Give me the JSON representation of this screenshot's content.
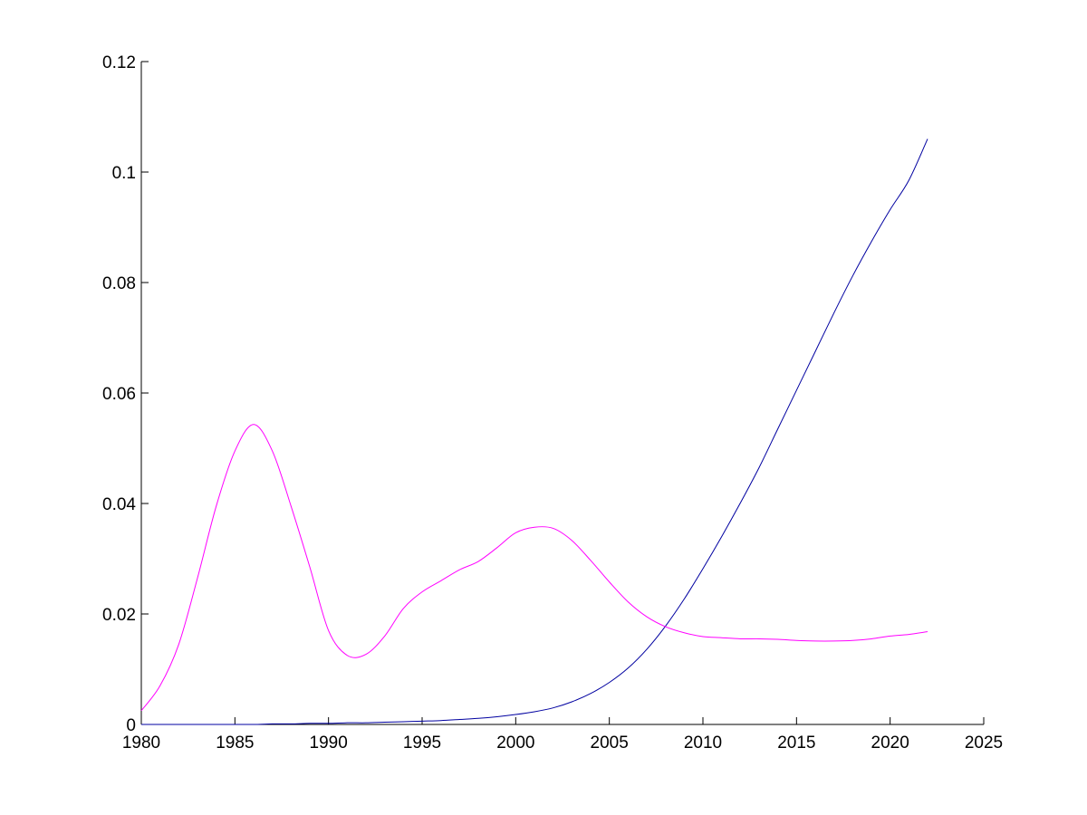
{
  "chart_data": {
    "type": "line",
    "title": "",
    "xlabel": "",
    "ylabel": "",
    "xlim": [
      1980,
      2025
    ],
    "ylim": [
      0,
      0.12
    ],
    "x_ticks": [
      1980,
      1985,
      1990,
      1995,
      2000,
      2005,
      2010,
      2015,
      2020,
      2025
    ],
    "x_tick_labels": [
      "1980",
      "1985",
      "1990",
      "1995",
      "2000",
      "2005",
      "2010",
      "2015",
      "2020",
      "2025"
    ],
    "y_ticks": [
      0,
      0.02,
      0.04,
      0.06,
      0.08,
      0.1,
      0.12
    ],
    "y_tick_labels": [
      "0",
      "0.02",
      "0.04",
      "0.06",
      "0.08",
      "0.1",
      "0.12"
    ],
    "grid": false,
    "legend": "none",
    "box": "axes lines on left and bottom only",
    "series": [
      {
        "color": "#0000a0",
        "x": [
          1980,
          1981,
          1982,
          1983,
          1984,
          1985,
          1986,
          1987,
          1988,
          1989,
          1990,
          1991,
          1992,
          1993,
          1994,
          1995,
          1996,
          1997,
          1998,
          1999,
          2000,
          2001,
          2002,
          2003,
          2004,
          2005,
          2006,
          2007,
          2008,
          2009,
          2010,
          2011,
          2012,
          2013,
          2014,
          2015,
          2016,
          2017,
          2018,
          2019,
          2020,
          2021,
          2022
        ],
        "values": [
          0.0,
          0.0,
          0.0,
          0.0,
          0.0,
          0.0,
          0.0,
          0.0001,
          0.0001,
          0.0002,
          0.0002,
          0.0003,
          0.0003,
          0.0004,
          0.0005,
          0.0006,
          0.0007,
          0.0009,
          0.0011,
          0.0014,
          0.0018,
          0.0023,
          0.003,
          0.0041,
          0.0056,
          0.0076,
          0.0102,
          0.0136,
          0.0178,
          0.0227,
          0.0282,
          0.034,
          0.0401,
          0.0465,
          0.0535,
          0.0605,
          0.0675,
          0.0745,
          0.0812,
          0.0874,
          0.0932,
          0.0985,
          0.106
        ]
      },
      {
        "color": "#ff00ff",
        "x": [
          1980,
          1981,
          1982,
          1983,
          1984,
          1985,
          1986,
          1987,
          1988,
          1989,
          1990,
          1991,
          1992,
          1993,
          1994,
          1995,
          1996,
          1997,
          1998,
          1999,
          2000,
          2001,
          2002,
          2003,
          2004,
          2005,
          2006,
          2007,
          2008,
          2009,
          2010,
          2011,
          2012,
          2013,
          2014,
          2015,
          2016,
          2017,
          2018,
          2019,
          2020,
          2021,
          2022
        ],
        "values": [
          0.0025,
          0.007,
          0.0145,
          0.0265,
          0.0395,
          0.0495,
          0.0543,
          0.0495,
          0.0395,
          0.0285,
          0.017,
          0.0125,
          0.0127,
          0.016,
          0.021,
          0.024,
          0.026,
          0.028,
          0.0295,
          0.032,
          0.0347,
          0.0357,
          0.0355,
          0.0333,
          0.0297,
          0.0258,
          0.0222,
          0.0195,
          0.0177,
          0.0166,
          0.0159,
          0.0157,
          0.0155,
          0.0155,
          0.0154,
          0.0152,
          0.0151,
          0.0151,
          0.0152,
          0.0155,
          0.016,
          0.0163,
          0.0168
        ]
      }
    ]
  }
}
